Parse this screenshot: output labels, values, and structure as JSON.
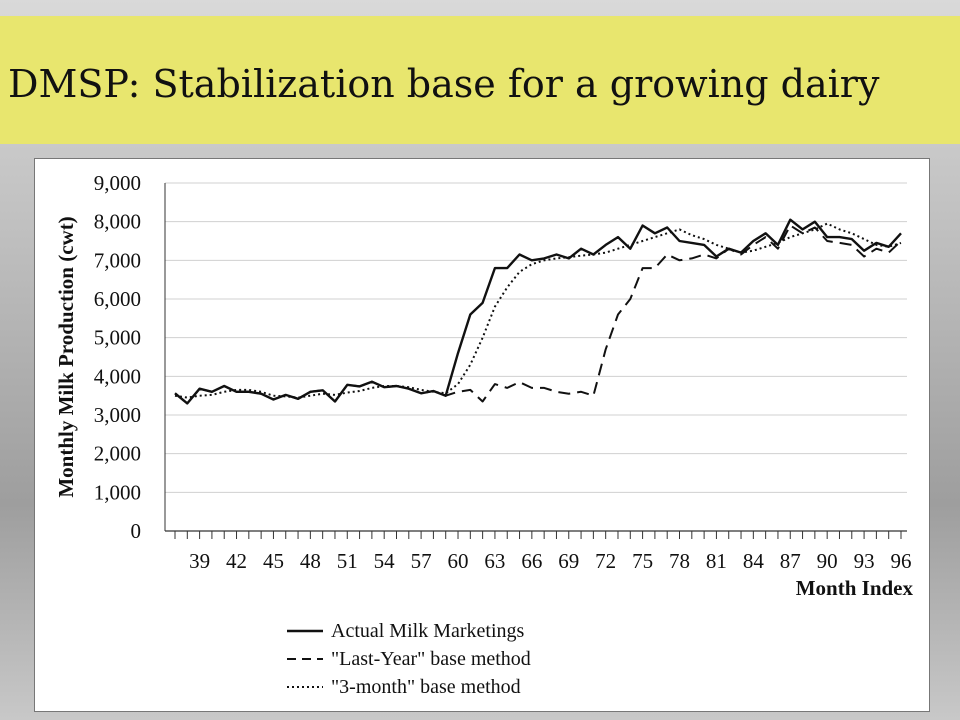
{
  "slide": {
    "title": "DMSP: Stabilization base for a growing dairy"
  },
  "colors": {
    "title_bar": "#e8e66e",
    "series": "#111111",
    "grid": "#d0d0d0"
  },
  "chart_data": {
    "type": "line",
    "title": "",
    "xlabel": "Month Index",
    "ylabel": "Monthly Milk Production (cwt)",
    "ylim": [
      0,
      9000
    ],
    "yticks": [
      0,
      1000,
      2000,
      3000,
      4000,
      5000,
      6000,
      7000,
      8000,
      9000
    ],
    "ytick_labels": [
      "0",
      "1,000",
      "2,000",
      "3,000",
      "4,000",
      "5,000",
      "6,000",
      "7,000",
      "8,000",
      "9,000"
    ],
    "xticks": [
      39,
      42,
      45,
      48,
      51,
      54,
      57,
      60,
      63,
      66,
      69,
      72,
      75,
      78,
      81,
      84,
      87,
      90,
      93,
      96
    ],
    "xrange": [
      37,
      96
    ],
    "grid": "horizontal",
    "legend_position": "bottom",
    "series": [
      {
        "name": "Actual Milk Marketings",
        "style": "solid",
        "x": [
          37,
          38,
          39,
          40,
          41,
          42,
          43,
          44,
          45,
          46,
          47,
          48,
          49,
          50,
          51,
          52,
          53,
          54,
          55,
          56,
          57,
          58,
          59,
          60,
          61,
          62,
          63,
          64,
          65,
          66,
          67,
          68,
          69,
          70,
          71,
          72,
          73,
          74,
          75,
          76,
          77,
          78,
          79,
          80,
          81,
          82,
          83,
          84,
          85,
          86,
          87,
          88,
          89,
          90,
          91,
          92,
          93,
          94,
          95,
          96
        ],
        "values": [
          3560,
          3300,
          3680,
          3600,
          3750,
          3600,
          3600,
          3550,
          3400,
          3520,
          3420,
          3600,
          3640,
          3350,
          3780,
          3740,
          3860,
          3720,
          3750,
          3680,
          3560,
          3620,
          3500,
          4600,
          5600,
          5900,
          6800,
          6800,
          7150,
          7000,
          7050,
          7150,
          7050,
          7300,
          7150,
          7400,
          7600,
          7300,
          7900,
          7700,
          7850,
          7500,
          7450,
          7400,
          7100,
          7300,
          7200,
          7500,
          7700,
          7400,
          8050,
          7800,
          8000,
          7600,
          7600,
          7550,
          7250,
          7450,
          7350,
          7700
        ]
      },
      {
        "name": "\"Last-Year\" base method",
        "style": "dashed",
        "x": [
          37,
          38,
          39,
          40,
          41,
          42,
          43,
          44,
          45,
          46,
          47,
          48,
          49,
          50,
          51,
          52,
          53,
          54,
          55,
          56,
          57,
          58,
          59,
          60,
          61,
          62,
          63,
          64,
          65,
          66,
          67,
          68,
          69,
          70,
          71,
          72,
          73,
          74,
          75,
          76,
          77,
          78,
          79,
          80,
          81,
          82,
          83,
          84,
          85,
          86,
          87,
          88,
          89,
          90,
          91,
          92,
          93,
          94,
          95,
          96
        ],
        "values": [
          3560,
          3300,
          3680,
          3600,
          3750,
          3600,
          3600,
          3550,
          3400,
          3520,
          3420,
          3600,
          3640,
          3350,
          3780,
          3740,
          3860,
          3720,
          3750,
          3680,
          3560,
          3620,
          3500,
          3600,
          3650,
          3350,
          3800,
          3700,
          3850,
          3700,
          3700,
          3600,
          3550,
          3600,
          3500,
          4700,
          5600,
          6000,
          6800,
          6800,
          7150,
          7000,
          7050,
          7150,
          7050,
          7300,
          7150,
          7400,
          7600,
          7300,
          7900,
          7700,
          7850,
          7500,
          7450,
          7400,
          7100,
          7300,
          7200,
          7500
        ]
      },
      {
        "name": "\"3-month\" base method",
        "style": "dotted",
        "x": [
          37,
          38,
          39,
          40,
          41,
          42,
          43,
          44,
          45,
          46,
          47,
          48,
          49,
          50,
          51,
          52,
          53,
          54,
          55,
          56,
          57,
          58,
          59,
          60,
          61,
          62,
          63,
          64,
          65,
          66,
          67,
          68,
          69,
          70,
          71,
          72,
          73,
          74,
          75,
          76,
          77,
          78,
          79,
          80,
          81,
          82,
          83,
          84,
          85,
          86,
          87,
          88,
          89,
          90,
          91,
          92,
          93,
          94,
          95,
          96
        ],
        "values": [
          3500,
          3450,
          3500,
          3520,
          3600,
          3650,
          3650,
          3600,
          3500,
          3480,
          3450,
          3500,
          3550,
          3520,
          3580,
          3620,
          3700,
          3750,
          3750,
          3720,
          3650,
          3600,
          3560,
          3800,
          4300,
          5000,
          5800,
          6300,
          6700,
          6900,
          7000,
          7050,
          7080,
          7120,
          7150,
          7200,
          7300,
          7400,
          7500,
          7600,
          7700,
          7800,
          7650,
          7550,
          7400,
          7300,
          7200,
          7250,
          7350,
          7450,
          7600,
          7700,
          7800,
          7950,
          7800,
          7700,
          7550,
          7400,
          7350,
          7450
        ]
      }
    ],
    "legend": [
      {
        "label": "Actual Milk Marketings",
        "style": "solid"
      },
      {
        "label": "\"Last-Year\" base method",
        "style": "dashed"
      },
      {
        "label": "\"3-month\" base method",
        "style": "dotted"
      }
    ]
  }
}
